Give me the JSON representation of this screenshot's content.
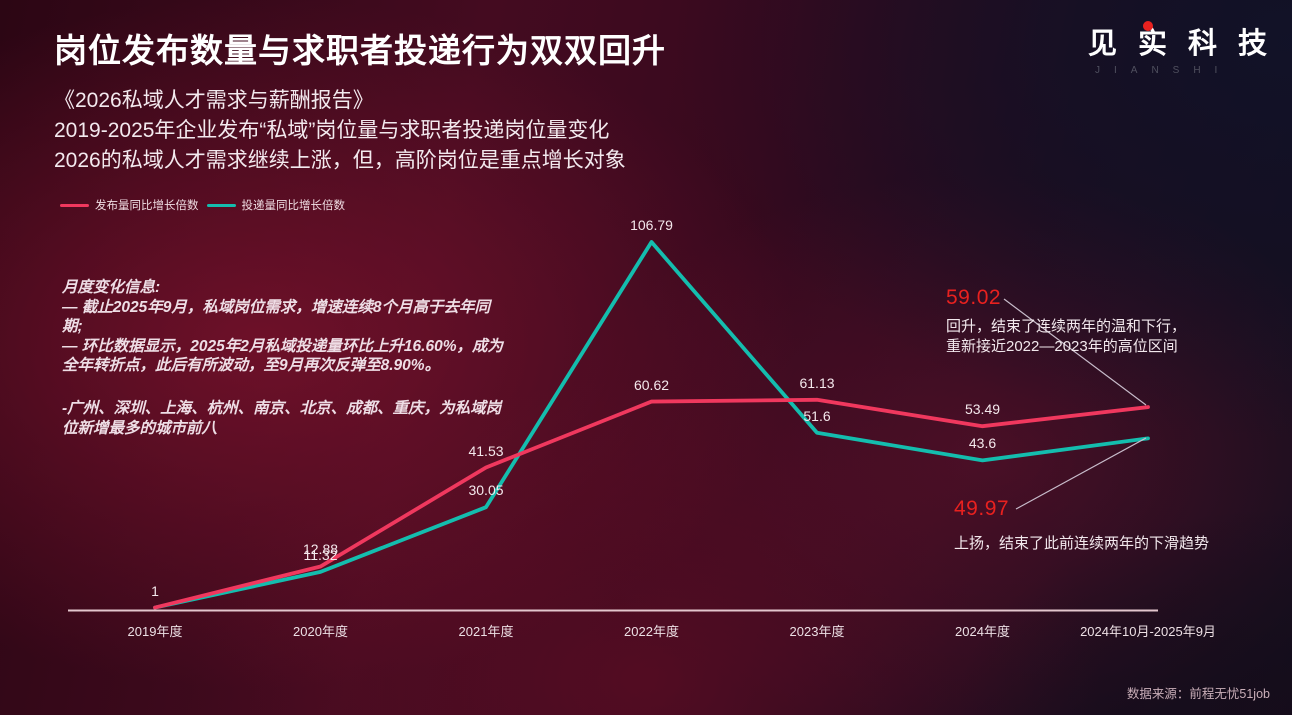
{
  "slide": {
    "title": "岗位发布数量与求职者投递行为双双回升",
    "subtitle_lines": [
      "《2026私域人才需求与薪酬报告》",
      "2019-2025年企业发布“私域”岗位量与求职者投递岗位量变化",
      "2026的私域人才需求继续上涨，但，高阶岗位是重点增长对象"
    ],
    "logo": {
      "text": "见实科技",
      "subtext": "JIANSHI"
    },
    "source": "数据来源：前程无忧51job"
  },
  "notes": {
    "monthly": [
      "月度变化信息:",
      "— 截止2025年9月，私域岗位需求，增速连续8个月高于去年同期;",
      "— 环比数据显示，2025年2月私域投递量环比上升16.60%，成为全年转折点，此后有所波动，至9月再次反弹至8.90%。"
    ],
    "cities": "-广州、深圳、上海、杭州、南京、北京、成都、重庆，为私域岗位新增最多的城市前八"
  },
  "annotations": {
    "publish": {
      "value": "59.02",
      "lines": [
        "回升，结束了连续两年的温和下行，",
        "重新接近2022—2023年的高位区间"
      ]
    },
    "apply": {
      "value": "49.97",
      "lines": [
        "上扬，结束了此前连续两年的下滑趋势"
      ]
    }
  },
  "chart_data": {
    "type": "line",
    "categories": [
      "2019年度",
      "2020年度",
      "2021年度",
      "2022年度",
      "2023年度",
      "2024年度",
      "2024年10月-2025年9月"
    ],
    "series": [
      {
        "name": "发布量同比增长倍数",
        "color": "#f0385e",
        "values": [
          1,
          12.88,
          41.53,
          60.62,
          61.13,
          53.49,
          59.02
        ],
        "labels": [
          "1",
          "12.88",
          "41.53",
          "60.62",
          "61.13",
          "53.49",
          ""
        ]
      },
      {
        "name": "投递量同比增长倍数",
        "color": "#14bdae",
        "values": [
          1,
          11.32,
          30.05,
          106.79,
          51.6,
          43.6,
          49.97
        ],
        "labels": [
          "",
          "11.32",
          "30.05",
          "106.79",
          "51.6",
          "43.6",
          ""
        ]
      }
    ],
    "ylim": [
      0,
      115
    ],
    "grid": false,
    "legend_position": "top-left"
  }
}
